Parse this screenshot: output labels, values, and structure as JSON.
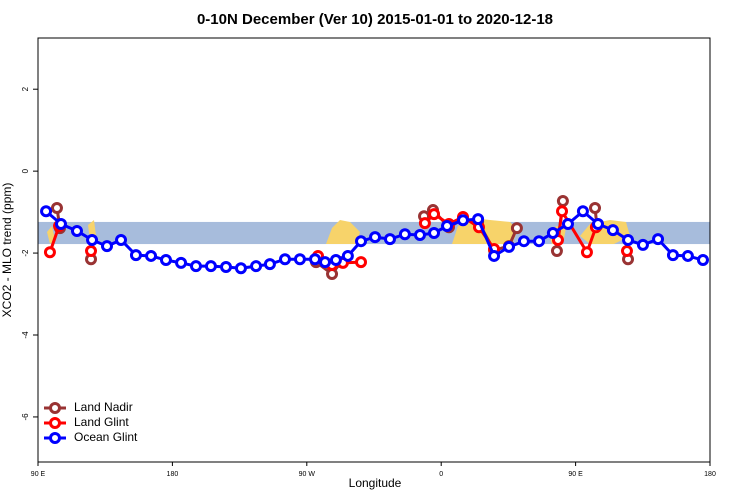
{
  "chart_data": {
    "type": "line",
    "title": "0-10N December (Ver 10)   2015-01-01 to 2020-12-18",
    "x_label": "Longitude",
    "y_label": "XCO2 - MLO trend (ppm)",
    "xlim": [
      90,
      540
    ],
    "ylim": [
      -7.1,
      3.25
    ],
    "xticks": [
      {
        "value": 90,
        "label": "90 E"
      },
      180,
      {
        "value": 270,
        "label": "90 W"
      },
      {
        "value": 360,
        "label": "0"
      },
      {
        "value": 450,
        "label": "90 E"
      },
      {
        "value": 540,
        "label": "180"
      }
    ],
    "yticks": [
      -6,
      -4,
      -2,
      0,
      2
    ],
    "band": {
      "color": "#a7bcdc",
      "range": [
        -1.78,
        -1.24
      ]
    },
    "legend": "bottom-left",
    "series": [
      {
        "name": "Land Nadir",
        "color": "#993333",
        "x": [
          102.7,
          104.7,
          null,
          125.5,
          null,
          276.2,
          286.9,
          292.9,
          null,
          348.5,
          354.5,
          365.2,
          374.6,
          384.7,
          395.4,
          405.4,
          410.7,
          null,
          437.5,
          441.5,
          null,
          463,
          464.3,
          null,
          485.1
        ],
        "values": [
          -0.9,
          -1.39,
          null,
          -2.15,
          null,
          -2.22,
          -2.51,
          -2.22,
          null,
          -1.1,
          -0.95,
          -1.37,
          -1.17,
          -1.24,
          -1.93,
          -1.83,
          -1.39,
          null,
          -1.95,
          -0.73,
          null,
          -0.9,
          -1.34,
          null,
          -2.15
        ]
      },
      {
        "name": "Land Glint",
        "color": "#ff0000",
        "x": [
          98,
          104.1,
          null,
          125.5,
          null,
          277.5,
          286.9,
          294.2,
          306.3,
          null,
          349.1,
          355.2,
          365.2,
          374.6,
          385.3,
          395.4,
          null,
          438.2,
          440.9,
          457.6,
          463.6,
          null,
          484.4
        ],
        "values": [
          -1.98,
          -1.34,
          null,
          -1.95,
          null,
          -2.07,
          -2.29,
          -2.24,
          -2.22,
          null,
          -1.27,
          -1.05,
          -1.29,
          -1.12,
          -1.37,
          -1.9,
          null,
          -1.68,
          -0.98,
          -1.98,
          -1.37,
          null,
          -1.95
        ]
      },
      {
        "name": "Ocean Glint",
        "color": "#0000ff",
        "x": [
          95.4,
          105.4,
          116.1,
          126.2,
          136.2,
          145.6,
          155.6,
          165.7,
          175.7,
          185.8,
          195.8,
          205.8,
          215.9,
          225.9,
          236,
          245.3,
          255.4,
          265.4,
          275.5,
          282.2,
          289.5,
          297.5,
          306.3,
          315.7,
          325.7,
          335.7,
          345.8,
          355.2,
          363.9,
          374.6,
          384.7,
          395.4,
          405.4,
          415.4,
          425.5,
          434.8,
          444.9,
          454.9,
          465,
          475,
          485.1,
          495.1,
          505.2,
          515.2,
          525.2,
          535.3
        ],
        "values": [
          -0.98,
          -1.29,
          -1.46,
          -1.68,
          -1.83,
          -1.68,
          -2.05,
          -2.07,
          -2.17,
          -2.24,
          -2.32,
          -2.32,
          -2.34,
          -2.37,
          -2.32,
          -2.27,
          -2.15,
          -2.15,
          -2.15,
          -2.22,
          -2.17,
          -2.07,
          -1.71,
          -1.61,
          -1.66,
          -1.54,
          -1.56,
          -1.51,
          -1.34,
          -1.2,
          -1.17,
          -2.07,
          -1.85,
          -1.71,
          -1.71,
          -1.51,
          -1.29,
          -0.98,
          -1.29,
          -1.44,
          -1.68,
          -1.8,
          -1.66,
          -2.05,
          -2.07,
          -2.17
        ]
      }
    ]
  }
}
